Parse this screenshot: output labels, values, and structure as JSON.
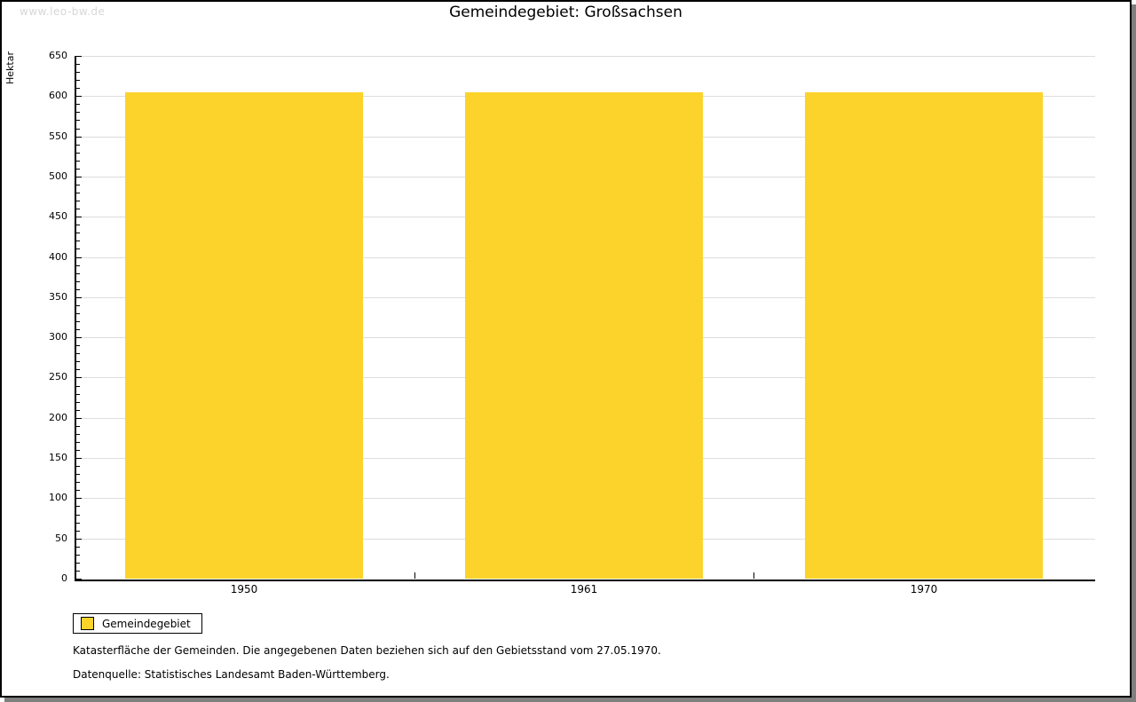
{
  "watermark": "www.leo-bw.de",
  "title": "Gemeindegebiet: Großsachsen",
  "chart_data": {
    "type": "bar",
    "title": "Gemeindegebiet: Großsachsen",
    "categories": [
      "1950",
      "1961",
      "1970"
    ],
    "series": [
      {
        "name": "Gemeindegebiet",
        "values": [
          605,
          605,
          605
        ]
      }
    ],
    "xlabel": "",
    "ylabel": "Hektar",
    "ylim": [
      0,
      650
    ],
    "ytick_major": 50,
    "ytick_minor": 10,
    "grid": true,
    "legend_position": "bottom-left",
    "bar_color": "#fcd32b",
    "gridline_color": "#dddddd",
    "axis_color": "#000000"
  },
  "legend": {
    "items": [
      {
        "label": "Gemeindegebiet",
        "color": "#fcd32b"
      }
    ]
  },
  "footnotes": [
    "Katasterfläche der Gemeinden. Die angegebenen Daten beziehen sich auf den Gebietsstand vom 27.05.1970.",
    "Datenquelle: Statistisches Landesamt Baden-Württemberg."
  ],
  "colors": {
    "shadow": "#7f7f7f",
    "watermark": "#d7d7d7",
    "background": "#ffffff"
  }
}
